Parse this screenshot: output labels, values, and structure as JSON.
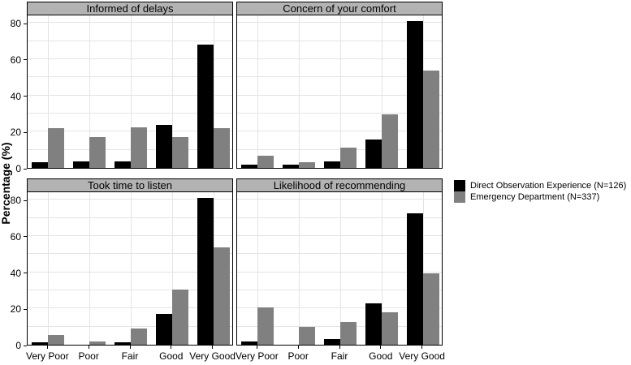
{
  "ylabel": "Percentage (%)",
  "colors": {
    "series_black": "#000000",
    "series_gray": "#808080",
    "strip_bg": "#b3b3b3",
    "gridline": "#e4e4e4",
    "panel_border": "#000000",
    "background": "#ffffff"
  },
  "legend": {
    "items": [
      {
        "label": "Direct Observation Experience (N=126)",
        "color": "#000000"
      },
      {
        "label": "Emergency Department (N=337)",
        "color": "#808080"
      }
    ]
  },
  "chart_data": {
    "type": "bar",
    "grouped": true,
    "categories": [
      "Very Poor",
      "Poor",
      "Fair",
      "Good",
      "Very Good"
    ],
    "yticks": [
      0,
      20,
      40,
      60,
      80
    ],
    "ylim": [
      0,
      85
    ],
    "gridline_step": 10,
    "grid": true,
    "legend_position": "right",
    "ylabel": "Percentage (%)",
    "facets": [
      {
        "title": "Informed of delays",
        "series": [
          {
            "name": "Direct Observation Experience (N=126)",
            "color": "#000000",
            "values": [
              3,
              3.5,
              3.5,
              23.5,
              68
            ]
          },
          {
            "name": "Emergency Department (N=337)",
            "color": "#808080",
            "values": [
              22,
              17,
              22.5,
              17,
              22
            ]
          }
        ]
      },
      {
        "title": "Concern of your comfort",
        "series": [
          {
            "name": "Direct Observation Experience (N=126)",
            "color": "#000000",
            "values": [
              2,
              2,
              3.5,
              15.5,
              81
            ]
          },
          {
            "name": "Emergency Department (N=337)",
            "color": "#808080",
            "values": [
              6.5,
              3,
              11,
              29.5,
              53.5
            ]
          }
        ]
      },
      {
        "title": "Took time to listen",
        "series": [
          {
            "name": "Direct Observation Experience (N=126)",
            "color": "#000000",
            "values": [
              1.5,
              0,
              1.5,
              17,
              81
            ]
          },
          {
            "name": "Emergency Department (N=337)",
            "color": "#808080",
            "values": [
              5.5,
              2,
              9,
              30.5,
              53.5
            ]
          }
        ]
      },
      {
        "title": "Likelihood of recommending",
        "series": [
          {
            "name": "Direct Observation Experience (N=126)",
            "color": "#000000",
            "values": [
              2,
              0,
              3,
              23,
              72.5
            ]
          },
          {
            "name": "Emergency Department (N=337)",
            "color": "#808080",
            "values": [
              20.5,
              10,
              12.5,
              18,
              39.5
            ]
          }
        ]
      }
    ]
  }
}
